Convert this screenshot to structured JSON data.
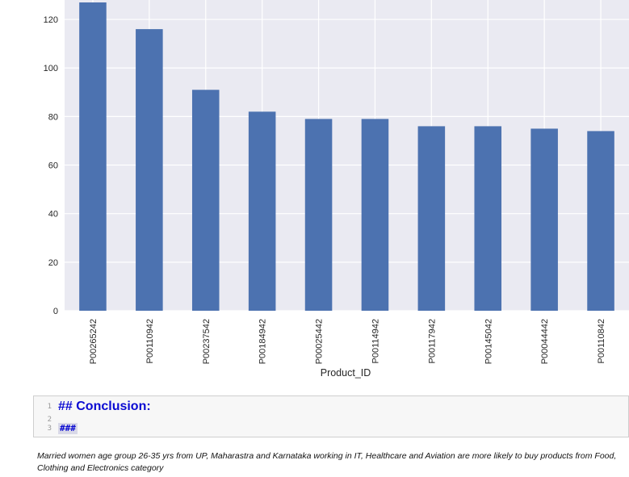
{
  "chart_data": {
    "type": "bar",
    "xlabel": "Product_ID",
    "ylabel": "",
    "categories": [
      "P00265242",
      "P00110942",
      "P00237542",
      "P00184942",
      "P00025442",
      "P00114942",
      "P00117942",
      "P00145042",
      "P00044442",
      "P00110842"
    ],
    "values": [
      127,
      116,
      91,
      82,
      79,
      79,
      76,
      76,
      75,
      74
    ],
    "ylim": [
      0,
      128
    ],
    "yticks": [
      0,
      20,
      40,
      60,
      80,
      100,
      120
    ],
    "grid": true,
    "legend": "none",
    "bar_color": "#4c72b0",
    "background_color": "#eaeaf2"
  },
  "markdown_cell": {
    "lines": [
      {
        "number": "1",
        "text": "## Conclusion:"
      },
      {
        "number": "2",
        "text": ""
      },
      {
        "number": "3",
        "text": "###"
      }
    ]
  },
  "conclusion_text": "Married women age group 26-35 yrs from UP, Maharastra and Karnataka working in IT, Healthcare and Aviation are more likely to buy products from Food, Clothing and Electronics category"
}
